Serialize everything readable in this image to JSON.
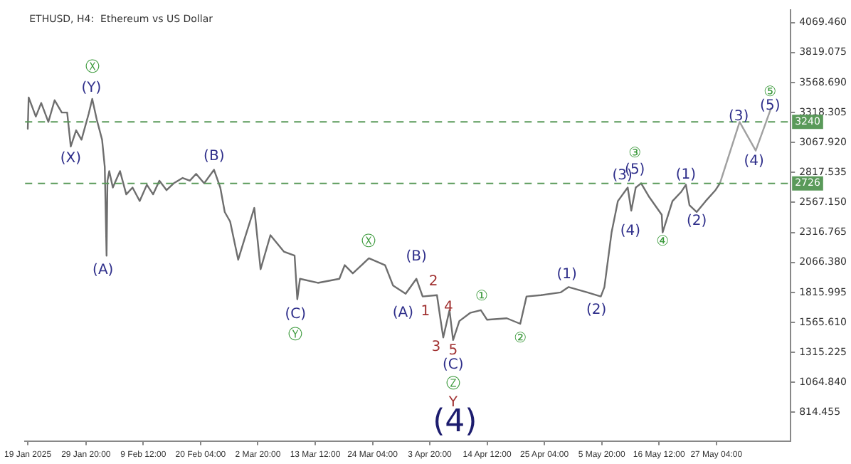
{
  "chart_data": {
    "type": "line",
    "title": "ETHUSD, H4:  Ethereum vs US Dollar",
    "xlim": [
      "2025-01-18T12:00",
      "2025-06-10T00:00"
    ],
    "xticks": [
      {
        "value": "2025-01-19T00:00",
        "label": "19 Jan 2025"
      },
      {
        "value": "2025-01-29T20:00",
        "label": "29 Jan 20:00"
      },
      {
        "value": "2025-02-09T12:00",
        "label": "9 Feb 12:00"
      },
      {
        "value": "2025-02-20T04:00",
        "label": "20 Feb 04:00"
      },
      {
        "value": "2025-03-02T20:00",
        "label": "2 Mar 20:00"
      },
      {
        "value": "2025-03-13T12:00",
        "label": "13 Mar 12:00"
      },
      {
        "value": "2025-03-24T04:00",
        "label": "24 Mar 04:00"
      },
      {
        "value": "2025-04-03T20:00",
        "label": "3 Apr 20:00"
      },
      {
        "value": "2025-04-14T12:00",
        "label": "14 Apr 12:00"
      },
      {
        "value": "2025-04-25T04:00",
        "label": "25 Apr 04:00"
      },
      {
        "value": "2025-05-05T20:00",
        "label": "5 May 20:00"
      },
      {
        "value": "2025-05-16T12:00",
        "label": "16 May 12:00"
      },
      {
        "value": "2025-05-27T04:00",
        "label": "27 May 04:00"
      }
    ],
    "ylim": [
      576,
      4172
    ],
    "yticks": [
      {
        "value": 814.455,
        "label": "814.455"
      },
      {
        "value": 1064.84,
        "label": "1064.840"
      },
      {
        "value": 1315.225,
        "label": "1315.225"
      },
      {
        "value": 1565.61,
        "label": "1565.610"
      },
      {
        "value": 1815.995,
        "label": "1815.995"
      },
      {
        "value": 2066.38,
        "label": "2066.380"
      },
      {
        "value": 2316.765,
        "label": "2316.765"
      },
      {
        "value": 2567.15,
        "label": "2567.150"
      },
      {
        "value": 2817.535,
        "label": "2817.535"
      },
      {
        "value": 3067.92,
        "label": "3067.920"
      },
      {
        "value": 3318.305,
        "label": "3318.305"
      },
      {
        "value": 3568.69,
        "label": "3568.690"
      },
      {
        "value": 3819.075,
        "label": "3819.075"
      },
      {
        "value": 4069.46,
        "label": "4069.460"
      }
    ],
    "grid": false,
    "legend": false,
    "marker": "none",
    "line_style": "solid",
    "series": [
      {
        "color": "#6e6e6e",
        "x": [
          "2025-01-19T00:00",
          "2025-01-19T04:00",
          "2025-01-20T12:00",
          "2025-01-21T12:00",
          "2025-01-22T20:00",
          "2025-01-24T00:00",
          "2025-01-25T08:00",
          "2025-01-26T08:00",
          "2025-01-27T00:00",
          "2025-01-28T00:00",
          "2025-01-29T00:00",
          "2025-01-30T08:00",
          "2025-01-31T00:00",
          "2025-01-31T20:00",
          "2025-02-01T20:00",
          "2025-02-02T08:00",
          "2025-02-02T16:00",
          "2025-02-02T20:00",
          "2025-02-03T04:00",
          "2025-02-03T20:00",
          "2025-02-05T04:00",
          "2025-02-06T08:00",
          "2025-02-07T12:00",
          "2025-02-08T20:00",
          "2025-02-10T04:00",
          "2025-02-11T08:00",
          "2025-02-12T12:00",
          "2025-02-13T20:00",
          "2025-02-15T04:00",
          "2025-02-16T20:00",
          "2025-02-18T04:00",
          "2025-02-19T08:00",
          "2025-02-20T20:00",
          "2025-02-22T16:00",
          "2025-02-23T20:00",
          "2025-02-24T16:00",
          "2025-02-25T16:00",
          "2025-02-27T04:00",
          "2025-02-28T08:00",
          "2025-03-02T04:00",
          "2025-03-03T08:00",
          "2025-03-05T04:00",
          "2025-03-07T16:00",
          "2025-03-09T16:00",
          "2025-03-10T04:00",
          "2025-03-10T16:00",
          "2025-03-14T00:00",
          "2025-03-18T00:00",
          "2025-03-19T00:00",
          "2025-03-20T12:00",
          "2025-03-23T12:00",
          "2025-03-26T12:00",
          "2025-03-28T00:00",
          "2025-03-30T08:00",
          "2025-04-01T08:00",
          "2025-04-02T12:00",
          "2025-04-05T04:00",
          "2025-04-05T20:00",
          "2025-04-06T08:00",
          "2025-04-07T12:00",
          "2025-04-08T04:00",
          "2025-04-09T08:00",
          "2025-04-11T08:00",
          "2025-04-13T08:00",
          "2025-04-14T12:00",
          "2025-04-18T04:00",
          "2025-04-20T16:00",
          "2025-04-21T20:00",
          "2025-04-24T12:00",
          "2025-04-28T04:00",
          "2025-04-29T16:00",
          "2025-05-03T04:00",
          "2025-05-05T16:00",
          "2025-05-06T08:00",
          "2025-05-07T16:00",
          "2025-05-08T08:00",
          "2025-05-08T20:00",
          "2025-05-10T16:00",
          "2025-05-11T08:00",
          "2025-05-12T04:00",
          "2025-05-13T04:00",
          "2025-05-14T16:00",
          "2025-05-17T00:00",
          "2025-05-17T04:00",
          "2025-05-19T00:00",
          "2025-05-20T16:00",
          "2025-05-21T12:00",
          "2025-05-22T04:00",
          "2025-05-23T12:00",
          "2025-05-25T04:00",
          "2025-05-27T00:00",
          "2025-05-27T20:00"
        ],
        "values": [
          3182,
          3444,
          3284,
          3398,
          3239,
          3421,
          3318,
          3318,
          3034,
          3170,
          3091,
          3307,
          3432,
          3261,
          3091,
          2863,
          2123,
          2749,
          2829,
          2692,
          2829,
          2635,
          2692,
          2579,
          2715,
          2635,
          2749,
          2670,
          2727,
          2772,
          2749,
          2806,
          2727,
          2840,
          2692,
          2487,
          2408,
          2089,
          2260,
          2522,
          2009,
          2294,
          2157,
          2123,
          1759,
          1930,
          1896,
          1930,
          2044,
          1975,
          2101,
          2044,
          1873,
          1805,
          1930,
          1782,
          1793,
          1588,
          1440,
          1668,
          1418,
          1577,
          1645,
          1668,
          1588,
          1600,
          1554,
          1782,
          1793,
          1816,
          1861,
          1816,
          1782,
          1861,
          2317,
          2465,
          2578,
          2692,
          2499,
          2692,
          2727,
          2613,
          2465,
          2317,
          2578,
          2658,
          2715,
          2544,
          2487,
          2578,
          2670,
          2727
        ]
      },
      {
        "color": "#a0a0a0",
        "x": [
          "2025-05-27T20:00",
          "2025-05-31T12:00",
          "2025-06-03T12:00",
          "2025-06-06T08:00"
        ],
        "values": [
          2727,
          3239,
          3000,
          3352
        ]
      }
    ],
    "ref_lines": [
      {
        "axis": "y",
        "value": 3240,
        "label": "3240",
        "color": "#5a9a5a",
        "line_style": "dashed"
      },
      {
        "axis": "y",
        "value": 2726,
        "label": "2726",
        "color": "#5a9a5a",
        "line_style": "dashed"
      }
    ],
    "annotations": [
      "Ⓧ",
      "(Y)",
      "(X)",
      "(A)",
      "(B)",
      "Ⓧ",
      "(B)",
      "(C)",
      "Ⓨ",
      "(A)",
      "1",
      "2",
      "3",
      "4",
      "5",
      "(C)",
      "Ⓩ",
      "Y",
      "(4)",
      "①",
      "②",
      "(1)",
      "(2)",
      "③",
      "(5)",
      "(3)",
      "(4)",
      "④",
      "(1)",
      "(2)",
      "(3)",
      "(4)",
      "(5)",
      "⑤"
    ]
  }
}
